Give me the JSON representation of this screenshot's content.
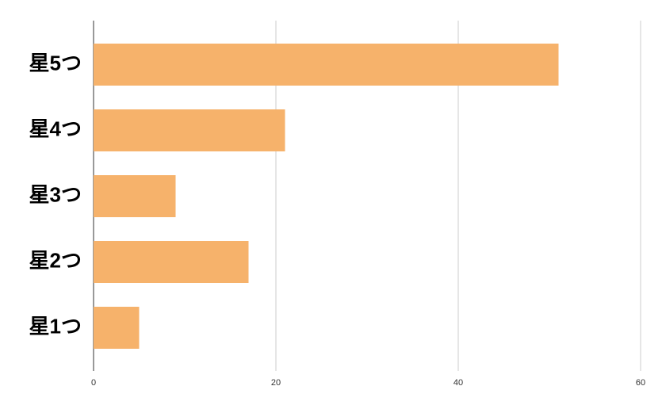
{
  "chart_data": {
    "type": "bar",
    "categories": [
      "星5つ",
      "星4つ",
      "星3つ",
      "星2つ",
      "星1つ"
    ],
    "values": [
      51,
      21,
      9,
      17,
      5
    ],
    "color": "#f6b26b",
    "xlim": [
      0,
      60
    ],
    "xticks": [
      0,
      20,
      40,
      60
    ],
    "grid": true
  }
}
